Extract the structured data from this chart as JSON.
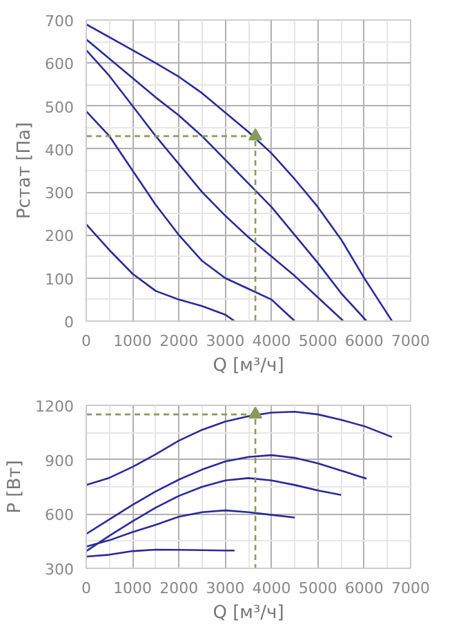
{
  "chart_data": [
    {
      "type": "line",
      "xlabel": "Q [м³/ч]",
      "ylabel": "Pстат [Па]",
      "xlim": [
        0,
        7000
      ],
      "ylim": [
        0,
        700
      ],
      "xticks": [
        0,
        1000,
        2000,
        3000,
        4000,
        5000,
        6000,
        7000
      ],
      "yticks": [
        0,
        100,
        200,
        300,
        400,
        500,
        600,
        700
      ],
      "grid": true,
      "marker": "none",
      "line_style": "solid",
      "series": [
        {
          "color": "#2a2a9a",
          "x": [
            0,
            500,
            1000,
            1500,
            2000,
            2500,
            3000,
            3500,
            4000,
            4500,
            5000,
            5500,
            6000,
            6300,
            6600
          ],
          "values": [
            690,
            660,
            630,
            600,
            568,
            530,
            485,
            440,
            390,
            330,
            265,
            190,
            100,
            50,
            0
          ]
        },
        {
          "color": "#2a2a9a",
          "x": [
            0,
            500,
            1000,
            1500,
            2000,
            2500,
            3000,
            3500,
            4000,
            4500,
            5000,
            5500,
            6050
          ],
          "values": [
            655,
            610,
            565,
            520,
            478,
            430,
            375,
            320,
            265,
            200,
            135,
            65,
            0
          ]
        },
        {
          "color": "#2a2a9a",
          "x": [
            0,
            500,
            1000,
            1500,
            2000,
            2500,
            3000,
            3500,
            4000,
            4500,
            5000,
            5550
          ],
          "values": [
            630,
            570,
            500,
            430,
            365,
            300,
            245,
            195,
            150,
            105,
            55,
            0
          ]
        },
        {
          "color": "#2a2a9a",
          "x": [
            0,
            500,
            1000,
            1500,
            2000,
            2500,
            3000,
            3500,
            4000,
            4250,
            4500
          ],
          "values": [
            488,
            430,
            350,
            270,
            200,
            140,
            100,
            75,
            50,
            25,
            0
          ]
        },
        {
          "color": "#2a2a9a",
          "x": [
            0,
            500,
            1000,
            1500,
            2000,
            2500,
            3000,
            3200
          ],
          "values": [
            225,
            165,
            110,
            70,
            50,
            35,
            15,
            0
          ]
        },
        {
          "color": "#8a9a5b",
          "line_style": "dashed",
          "x": [
            0,
            3650,
            3650
          ],
          "values": [
            430,
            430,
            0
          ]
        },
        {
          "type": "scatter",
          "marker": "triangle",
          "color": "#8a9a5b",
          "x": [
            3650
          ],
          "values": [
            430
          ]
        }
      ]
    },
    {
      "type": "line",
      "xlabel": "Q [м³/ч]",
      "ylabel": "P [Вт]",
      "xlim": [
        0,
        7000
      ],
      "ylim": [
        300,
        1200
      ],
      "xticks": [
        0,
        1000,
        2000,
        3000,
        4000,
        5000,
        6000,
        7000
      ],
      "yticks": [
        300,
        600,
        900,
        1200
      ],
      "grid": true,
      "marker": "none",
      "line_style": "solid",
      "series": [
        {
          "color": "#2a2a9a",
          "x": [
            0,
            500,
            1000,
            1500,
            2000,
            2500,
            3000,
            3500,
            4000,
            4500,
            5000,
            5500,
            6000,
            6600
          ],
          "values": [
            760,
            800,
            860,
            930,
            1005,
            1065,
            1110,
            1140,
            1160,
            1165,
            1150,
            1120,
            1085,
            1025
          ]
        },
        {
          "color": "#2a2a9a",
          "x": [
            0,
            500,
            1000,
            1500,
            2000,
            2500,
            3000,
            3500,
            4000,
            4500,
            5000,
            5500,
            6050
          ],
          "values": [
            490,
            570,
            650,
            725,
            790,
            845,
            890,
            915,
            925,
            910,
            880,
            840,
            795
          ]
        },
        {
          "color": "#2a2a9a",
          "x": [
            0,
            500,
            1000,
            1500,
            2000,
            2500,
            3000,
            3500,
            4000,
            4500,
            5000,
            5500
          ],
          "values": [
            395,
            480,
            560,
            635,
            700,
            750,
            785,
            798,
            785,
            760,
            730,
            705
          ]
        },
        {
          "color": "#2a2a9a",
          "x": [
            0,
            500,
            1000,
            1500,
            2000,
            2500,
            3000,
            3500,
            4000,
            4500
          ],
          "values": [
            420,
            455,
            500,
            540,
            585,
            610,
            620,
            610,
            595,
            580
          ]
        },
        {
          "color": "#2a2a9a",
          "x": [
            0,
            500,
            1000,
            1500,
            2000,
            2500,
            3000,
            3200
          ],
          "values": [
            365,
            375,
            395,
            403,
            402,
            400,
            398,
            398
          ]
        },
        {
          "color": "#8a9a5b",
          "line_style": "dashed",
          "x": [
            0,
            3650,
            3650
          ],
          "values": [
            1150,
            1150,
            300
          ]
        },
        {
          "type": "scatter",
          "marker": "triangle",
          "color": "#8a9a5b",
          "x": [
            3650
          ],
          "values": [
            1150
          ]
        }
      ]
    }
  ]
}
